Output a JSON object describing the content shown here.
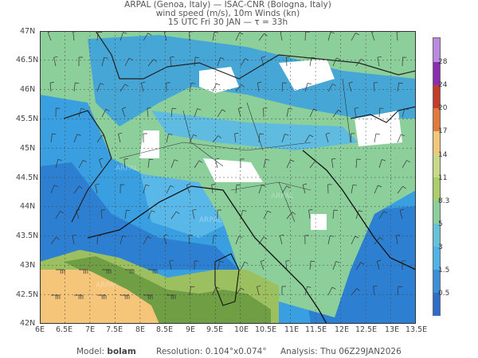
{
  "header": {
    "line1": "ARPAL (Genoa, Italy)  —  ISAC-CNR (Bologna, Italy)",
    "line2": "wind speed (m/s), 10m Winds (kn)",
    "line3": "15 UTC Fri 30 JAN  —  τ = 33h"
  },
  "map": {
    "lat_labels": [
      "47N",
      "46.5N",
      "46N",
      "45.5N",
      "45N",
      "44.5N",
      "44N",
      "43.5N",
      "43N",
      "42.5N",
      "42N"
    ],
    "lon_labels": [
      "6E",
      "6.5E",
      "7E",
      "7.5E",
      "8E",
      "8.5E",
      "9E",
      "9.5E",
      "10E",
      "10.5E",
      "11E",
      "11.5E",
      "12E",
      "12.5E",
      "13E",
      "13.5E"
    ],
    "watermark": "ARPAL",
    "colors": {
      "sea_blue": "#2d7fd2",
      "mid_blue": "#3a9fe0",
      "light_blue": "#5ab8e8",
      "green": "#8ccf9b",
      "white": "#ffffff",
      "olive": "#9cc060",
      "dark_olive": "#6f9e45",
      "orange": "#f5c57a"
    }
  },
  "colorbar": {
    "labels": [
      "0.5",
      "1.5",
      "3",
      "5",
      "8.3",
      "11",
      "14",
      "17",
      "20",
      "24",
      "28"
    ],
    "colors": [
      "#2e6dc8",
      "#3a8fd8",
      "#4fb3e8",
      "#65c2d8",
      "#8ccf9b",
      "#a8cf6a",
      "#c8d98a",
      "#f3c779",
      "#e07a3a",
      "#c23b2b",
      "#8a2db0",
      "#b98ae0"
    ]
  },
  "footer": {
    "model_label": "Model:",
    "model_value": "bolam",
    "resolution": "Resolution: 0.104°x0.074°",
    "analysis": "Analysis: Thu 06Z29JAN2026"
  }
}
